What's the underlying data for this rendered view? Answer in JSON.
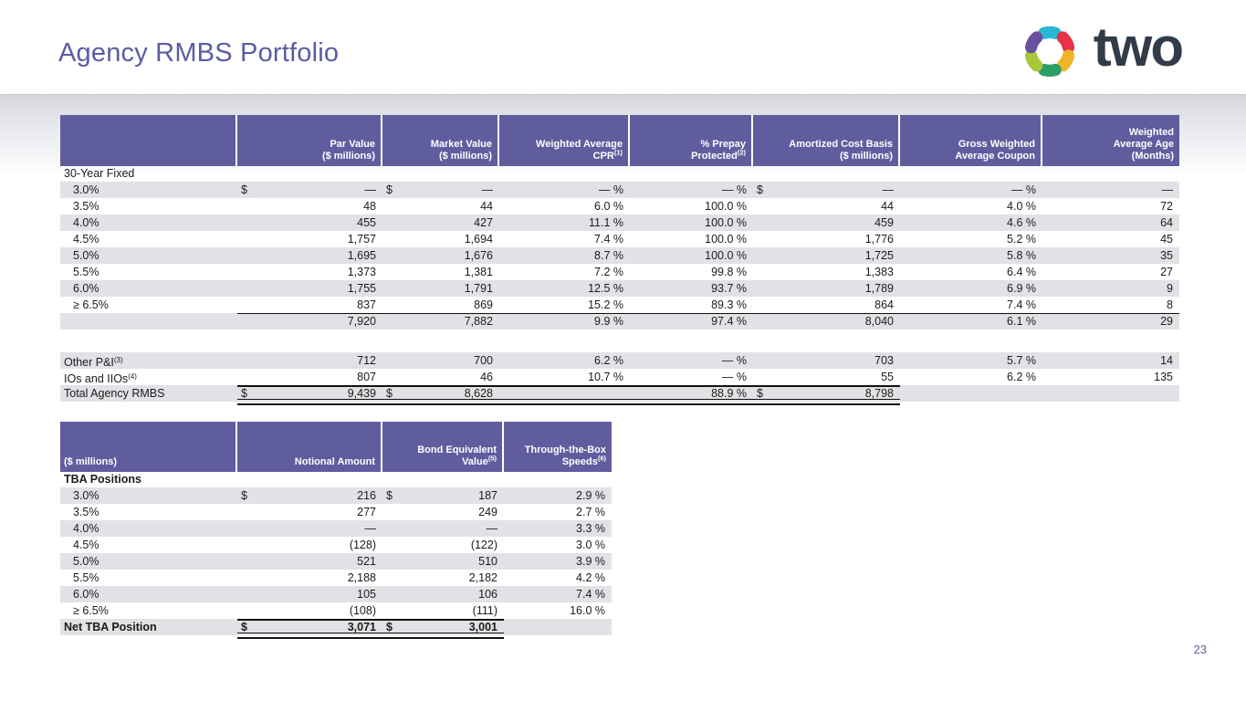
{
  "slide": {
    "title": "Agency RMBS Portfolio",
    "page_number": "23"
  },
  "logo": {
    "wordmark": "two",
    "icon": "two-harbors-pinwheel-icon",
    "segment_colors": [
      "#29b7d3",
      "#e73249",
      "#f0b429",
      "#2d9e64",
      "#a8c83b",
      "#6b4fa1"
    ]
  },
  "colors": {
    "header_purple": "#605d9e",
    "stripe_gray": "#e2e2e6",
    "title_purple": "#5c5ba3",
    "wordmark_dark": "#323c48"
  },
  "portfolio_table": {
    "headers": [
      {
        "lines": [
          ""
        ],
        "sup": ""
      },
      {
        "lines": [
          "Par Value",
          "($ millions)"
        ],
        "sup": ""
      },
      {
        "lines": [
          "Market Value",
          "($ millions)"
        ],
        "sup": ""
      },
      {
        "lines": [
          "Weighted Average",
          "CPR"
        ],
        "sup": "(1)"
      },
      {
        "lines": [
          "% Prepay",
          "Protected"
        ],
        "sup": "(2)"
      },
      {
        "lines": [
          "Amortized Cost Basis",
          "($ millions)"
        ],
        "sup": ""
      },
      {
        "lines": [
          "Gross Weighted",
          "Average Coupon"
        ],
        "sup": ""
      },
      {
        "lines": [
          "Weighted",
          "Average Age",
          "(Months)"
        ],
        "sup": ""
      }
    ],
    "rows": [
      {
        "type": "section",
        "label": "30-Year Fixed"
      },
      {
        "type": "data",
        "shade": true,
        "indent": true,
        "label": "3.0%",
        "par_d": "$",
        "par": "—",
        "mkt_d": "$",
        "mkt": "—",
        "cpr": "— %",
        "prepay": "— %",
        "cost_d": "$",
        "cost": "—",
        "coupon": "— %",
        "age": "—"
      },
      {
        "type": "data",
        "shade": false,
        "indent": true,
        "label": "3.5%",
        "par": "48",
        "mkt": "44",
        "cpr": "6.0 %",
        "prepay": "100.0 %",
        "cost": "44",
        "coupon": "4.0 %",
        "age": "72"
      },
      {
        "type": "data",
        "shade": true,
        "indent": true,
        "label": "4.0%",
        "par": "455",
        "mkt": "427",
        "cpr": "11.1 %",
        "prepay": "100.0 %",
        "cost": "459",
        "coupon": "4.6 %",
        "age": "64"
      },
      {
        "type": "data",
        "shade": false,
        "indent": true,
        "label": "4.5%",
        "par": "1,757",
        "mkt": "1,694",
        "cpr": "7.4 %",
        "prepay": "100.0 %",
        "cost": "1,776",
        "coupon": "5.2 %",
        "age": "45"
      },
      {
        "type": "data",
        "shade": true,
        "indent": true,
        "label": "5.0%",
        "par": "1,695",
        "mkt": "1,676",
        "cpr": "8.7 %",
        "prepay": "100.0 %",
        "cost": "1,725",
        "coupon": "5.8 %",
        "age": "35"
      },
      {
        "type": "data",
        "shade": false,
        "indent": true,
        "label": "5.5%",
        "par": "1,373",
        "mkt": "1,381",
        "cpr": "7.2 %",
        "prepay": "99.8 %",
        "cost": "1,383",
        "coupon": "6.4 %",
        "age": "27"
      },
      {
        "type": "data",
        "shade": true,
        "indent": true,
        "label": "6.0%",
        "par": "1,755",
        "mkt": "1,791",
        "cpr": "12.5 %",
        "prepay": "93.7 %",
        "cost": "1,789",
        "coupon": "6.9 %",
        "age": "9"
      },
      {
        "type": "data",
        "shade": false,
        "indent": true,
        "label": "≥ 6.5%",
        "par": "837",
        "mkt": "869",
        "cpr": "15.2 %",
        "prepay": "89.3 %",
        "cost": "864",
        "coupon": "7.4 %",
        "age": "8"
      },
      {
        "type": "subtotal",
        "shade": true,
        "label": "",
        "par": "7,920",
        "mkt": "7,882",
        "cpr": "9.9 %",
        "prepay": "97.4 %",
        "cost": "8,040",
        "coupon": "6.1 %",
        "age": "29"
      },
      {
        "type": "spacer"
      },
      {
        "type": "data",
        "shade": true,
        "label": "Other P&I",
        "sup": "(3)",
        "par": "712",
        "mkt": "700",
        "cpr": "6.2 %",
        "prepay": "— %",
        "cost": "703",
        "coupon": "5.7 %",
        "age": "14"
      },
      {
        "type": "data",
        "shade": false,
        "label": "IOs and IIOs",
        "sup": "(4)",
        "par": "807",
        "mkt": "46",
        "cpr": "10.7 %",
        "prepay": "— %",
        "cost": "55",
        "coupon": "6.2 %",
        "age": "135"
      },
      {
        "type": "total",
        "shade": true,
        "label": "Total Agency RMBS",
        "par_d": "$",
        "par": "9,439",
        "mkt_d": "$",
        "mkt": "8,628",
        "cpr": "",
        "prepay": "88.9 %",
        "cost_d": "$",
        "cost": "8,798",
        "coupon": "",
        "age": ""
      }
    ]
  },
  "tba_table": {
    "headers": [
      {
        "lines": [
          "($ millions)"
        ],
        "sup": "",
        "align": "left"
      },
      {
        "lines": [
          "Notional Amount"
        ],
        "sup": ""
      },
      {
        "lines": [
          "Bond Equivalent",
          "Value"
        ],
        "sup": "(5)"
      },
      {
        "lines": [
          "Through-the-Box",
          "Speeds"
        ],
        "sup": "(6)"
      }
    ],
    "rows": [
      {
        "type": "section",
        "label": "TBA Positions",
        "bold": true
      },
      {
        "type": "data",
        "shade": true,
        "indent": true,
        "label": "3.0%",
        "notional_d": "$",
        "notional": "216",
        "bond_d": "$",
        "bond": "187",
        "speed": "2.9 %"
      },
      {
        "type": "data",
        "shade": false,
        "indent": true,
        "label": "3.5%",
        "notional": "277",
        "bond": "249",
        "speed": "2.7 %"
      },
      {
        "type": "data",
        "shade": true,
        "indent": true,
        "label": "4.0%",
        "notional": "—",
        "bond": "—",
        "speed": "3.3 %"
      },
      {
        "type": "data",
        "shade": false,
        "indent": true,
        "label": "4.5%",
        "notional": "(128)",
        "bond": "(122)",
        "speed": "3.0 %"
      },
      {
        "type": "data",
        "shade": true,
        "indent": true,
        "label": "5.0%",
        "notional": "521",
        "bond": "510",
        "speed": "3.9 %"
      },
      {
        "type": "data",
        "shade": false,
        "indent": true,
        "label": "5.5%",
        "notional": "2,188",
        "bond": "2,182",
        "speed": "4.2 %"
      },
      {
        "type": "data",
        "shade": true,
        "indent": true,
        "label": "6.0%",
        "notional": "105",
        "bond": "106",
        "speed": "7.4 %"
      },
      {
        "type": "data",
        "shade": false,
        "indent": true,
        "label": "≥ 6.5%",
        "notional": "(108)",
        "bond": "(111)",
        "speed": "16.0 %"
      },
      {
        "type": "total",
        "shade": true,
        "bold": true,
        "label": "Net TBA Position",
        "notional_d": "$",
        "notional": "3,071",
        "bond_d": "$",
        "bond": "3,001",
        "speed": ""
      }
    ]
  }
}
